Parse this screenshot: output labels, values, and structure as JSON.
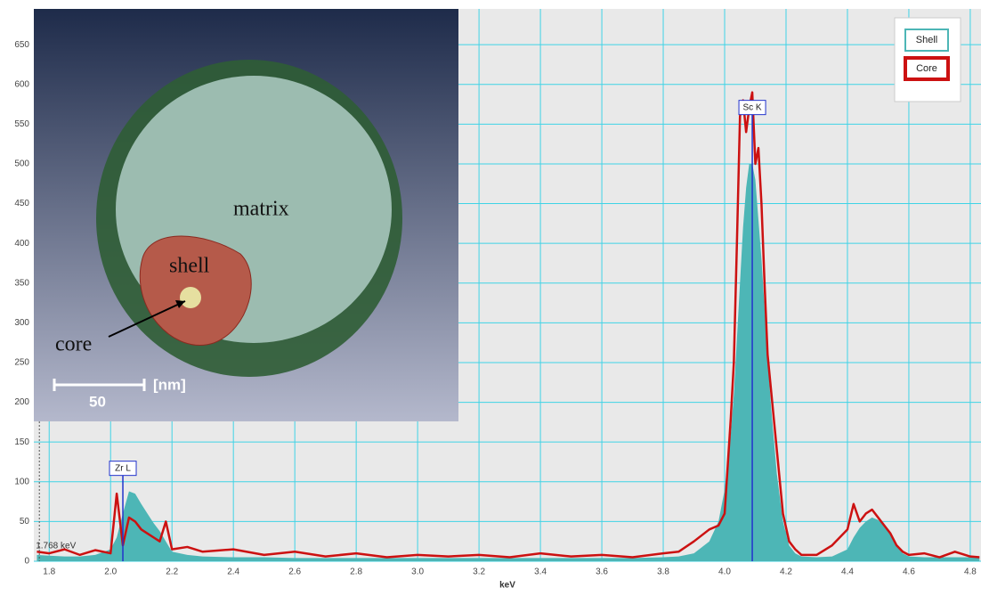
{
  "chart_data": {
    "type": "line",
    "x_label": "keV",
    "x": [
      1.76,
      1.8,
      1.85,
      1.9,
      1.95,
      2.0,
      2.02,
      2.04,
      2.06,
      2.08,
      2.1,
      2.12,
      2.14,
      2.16,
      2.18,
      2.2,
      2.25,
      2.3,
      2.4,
      2.5,
      2.6,
      2.7,
      2.8,
      2.9,
      3.0,
      3.1,
      3.2,
      3.3,
      3.4,
      3.5,
      3.6,
      3.7,
      3.8,
      3.85,
      3.9,
      3.95,
      3.98,
      4.0,
      4.02,
      4.03,
      4.04,
      4.05,
      4.06,
      4.07,
      4.08,
      4.09,
      4.1,
      4.11,
      4.12,
      4.13,
      4.14,
      4.15,
      4.17,
      4.19,
      4.21,
      4.23,
      4.25,
      4.3,
      4.35,
      4.4,
      4.42,
      4.44,
      4.46,
      4.48,
      4.5,
      4.52,
      4.54,
      4.56,
      4.58,
      4.6,
      4.65,
      4.7,
      4.75,
      4.8,
      4.83
    ],
    "series": [
      {
        "name": "Shell",
        "color": "#4db6b6",
        "style": "area",
        "values": [
          8,
          7,
          6,
          6,
          8,
          15,
          30,
          60,
          88,
          85,
          72,
          60,
          48,
          38,
          25,
          12,
          8,
          6,
          5,
          5,
          4,
          4,
          4,
          4,
          4,
          4,
          4,
          4,
          4,
          4,
          4,
          4,
          5,
          6,
          10,
          25,
          50,
          90,
          160,
          210,
          280,
          350,
          420,
          470,
          500,
          500,
          480,
          430,
          380,
          320,
          260,
          200,
          110,
          50,
          20,
          10,
          6,
          5,
          6,
          15,
          30,
          42,
          50,
          55,
          52,
          45,
          35,
          20,
          10,
          6,
          5,
          5,
          5,
          5,
          5
        ]
      },
      {
        "name": "Core",
        "color": "#cc1111",
        "style": "line",
        "values": [
          12,
          10,
          15,
          8,
          14,
          10,
          85,
          20,
          55,
          50,
          40,
          35,
          30,
          25,
          50,
          15,
          18,
          12,
          15,
          8,
          12,
          6,
          10,
          5,
          8,
          6,
          8,
          5,
          10,
          6,
          8,
          5,
          10,
          12,
          25,
          40,
          45,
          60,
          180,
          250,
          400,
          560,
          580,
          540,
          570,
          590,
          500,
          520,
          450,
          350,
          260,
          220,
          140,
          60,
          25,
          15,
          8,
          8,
          20,
          40,
          72,
          50,
          60,
          65,
          55,
          45,
          35,
          20,
          12,
          8,
          10,
          5,
          12,
          6,
          5
        ]
      }
    ],
    "xlim": [
      1.75,
      4.835
    ],
    "ylim": [
      0,
      695
    ],
    "xticks": [
      1.8,
      {
        "value": 2,
        "label": "2.0"
      },
      2.2,
      2.4,
      2.6,
      2.8,
      {
        "value": 3,
        "label": "3.0"
      },
      3.2,
      3.4,
      3.6,
      3.8,
      {
        "value": 4,
        "label": "4.0"
      },
      4.2,
      4.4,
      4.6,
      4.8
    ],
    "yticks": [
      0,
      50,
      100,
      150,
      200,
      250,
      300,
      350,
      400,
      450,
      500,
      550,
      600,
      650
    ],
    "grid": true,
    "legend": "upper-right",
    "annotations": [
      {
        "text": "Zr L",
        "x": 2.04,
        "y": 108
      },
      {
        "text": "Sc K",
        "x": 4.09,
        "y": 562
      }
    ],
    "cursor": {
      "text": "1.768 keV",
      "x": 1.768
    },
    "inset": {
      "matrix": "matrix",
      "shell": "shell",
      "core": "core",
      "scale": "50",
      "unit": "[nm]"
    }
  }
}
